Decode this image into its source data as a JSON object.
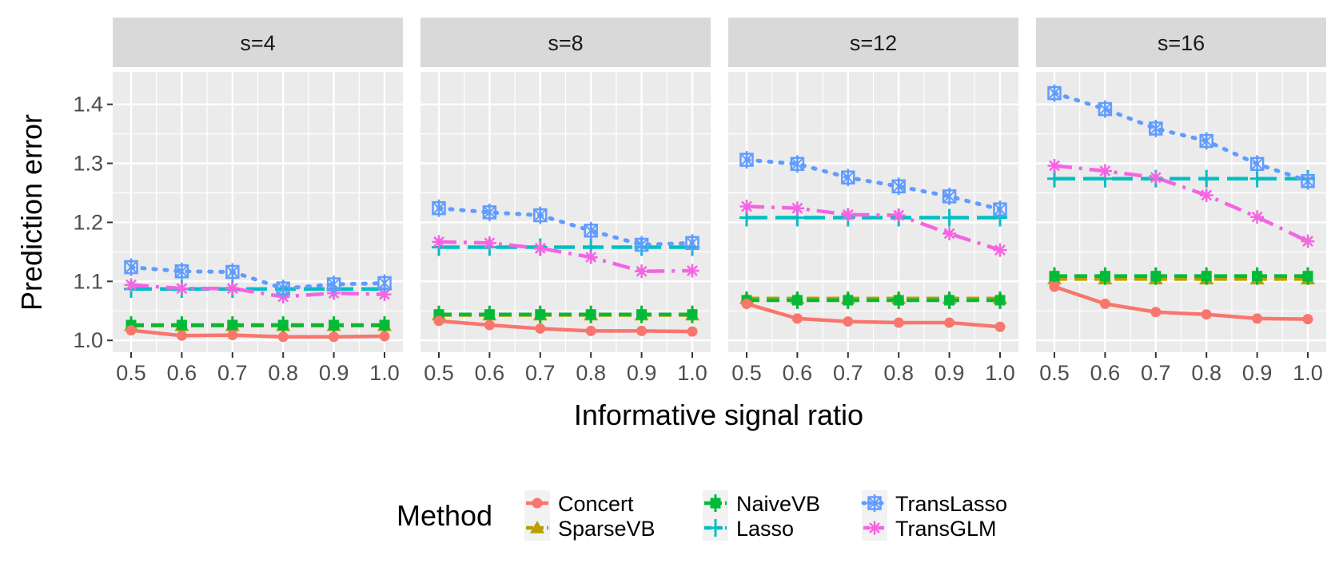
{
  "chart_data": {
    "type": "line",
    "xlabel": "Informative signal ratio",
    "ylabel": "Prediction error",
    "x": [
      0.5,
      0.6,
      0.7,
      0.8,
      0.9,
      1.0
    ],
    "x_tick_labels": [
      "0.5",
      "0.6",
      "0.7",
      "0.8",
      "0.9",
      "1.0"
    ],
    "y_ticks": [
      1.0,
      1.1,
      1.2,
      1.3,
      1.4
    ],
    "y_tick_labels": [
      "1.0",
      "1.1",
      "1.2",
      "1.3",
      "1.4"
    ],
    "ylim": [
      0.98,
      1.455
    ],
    "grid": true,
    "legend": {
      "title": "Method",
      "position": "bottom",
      "entries": [
        "Concert",
        "SparseVB",
        "NaiveVB",
        "Lasso",
        "TransLasso",
        "TransGLM"
      ]
    },
    "colors": {
      "Concert": "#F8766D",
      "SparseVB": "#B79F00",
      "NaiveVB": "#00BA38",
      "Lasso": "#00BFC4",
      "TransLasso": "#619CFF",
      "TransGLM": "#F564E3"
    },
    "panels": [
      {
        "title": "s=4",
        "series": [
          {
            "name": "Concert",
            "values": [
              1.017,
              1.008,
              1.009,
              1.006,
              1.006,
              1.007
            ]
          },
          {
            "name": "SparseVB",
            "values": [
              1.025,
              1.025,
              1.025,
              1.025,
              1.025,
              1.025
            ]
          },
          {
            "name": "NaiveVB",
            "values": [
              1.026,
              1.026,
              1.026,
              1.026,
              1.026,
              1.026
            ]
          },
          {
            "name": "Lasso",
            "values": [
              1.087,
              1.087,
              1.087,
              1.087,
              1.087,
              1.087
            ]
          },
          {
            "name": "TransLasso",
            "values": [
              1.124,
              1.117,
              1.116,
              1.088,
              1.095,
              1.097
            ]
          },
          {
            "name": "TransGLM",
            "values": [
              1.094,
              1.088,
              1.088,
              1.074,
              1.08,
              1.078
            ]
          }
        ]
      },
      {
        "title": "s=8",
        "series": [
          {
            "name": "Concert",
            "values": [
              1.033,
              1.026,
              1.02,
              1.016,
              1.016,
              1.015
            ]
          },
          {
            "name": "SparseVB",
            "values": [
              1.043,
              1.043,
              1.043,
              1.043,
              1.043,
              1.043
            ]
          },
          {
            "name": "NaiveVB",
            "values": [
              1.044,
              1.044,
              1.044,
              1.044,
              1.044,
              1.044
            ]
          },
          {
            "name": "Lasso",
            "values": [
              1.158,
              1.158,
              1.158,
              1.158,
              1.158,
              1.158
            ]
          },
          {
            "name": "TransLasso",
            "values": [
              1.224,
              1.217,
              1.212,
              1.186,
              1.162,
              1.165
            ]
          },
          {
            "name": "TransGLM",
            "values": [
              1.167,
              1.165,
              1.156,
              1.141,
              1.117,
              1.118
            ]
          }
        ]
      },
      {
        "title": "s=12",
        "series": [
          {
            "name": "Concert",
            "values": [
              1.062,
              1.037,
              1.032,
              1.03,
              1.03,
              1.023
            ]
          },
          {
            "name": "SparseVB",
            "values": [
              1.071,
              1.071,
              1.071,
              1.071,
              1.071,
              1.071
            ]
          },
          {
            "name": "NaiveVB",
            "values": [
              1.068,
              1.068,
              1.068,
              1.068,
              1.068,
              1.068
            ]
          },
          {
            "name": "Lasso",
            "values": [
              1.208,
              1.208,
              1.208,
              1.208,
              1.208,
              1.208
            ]
          },
          {
            "name": "TransLasso",
            "values": [
              1.306,
              1.299,
              1.276,
              1.261,
              1.244,
              1.222
            ]
          },
          {
            "name": "TransGLM",
            "values": [
              1.227,
              1.224,
              1.213,
              1.212,
              1.181,
              1.153
            ]
          }
        ]
      },
      {
        "title": "s=16",
        "series": [
          {
            "name": "Concert",
            "values": [
              1.091,
              1.062,
              1.048,
              1.044,
              1.037,
              1.036
            ]
          },
          {
            "name": "SparseVB",
            "values": [
              1.104,
              1.104,
              1.104,
              1.104,
              1.104,
              1.104
            ]
          },
          {
            "name": "NaiveVB",
            "values": [
              1.109,
              1.109,
              1.109,
              1.109,
              1.109,
              1.109
            ]
          },
          {
            "name": "Lasso",
            "values": [
              1.274,
              1.274,
              1.274,
              1.274,
              1.274,
              1.274
            ]
          },
          {
            "name": "TransLasso",
            "values": [
              1.419,
              1.392,
              1.359,
              1.338,
              1.299,
              1.27
            ]
          },
          {
            "name": "TransGLM",
            "values": [
              1.296,
              1.287,
              1.276,
              1.246,
              1.209,
              1.168
            ]
          }
        ]
      }
    ]
  }
}
